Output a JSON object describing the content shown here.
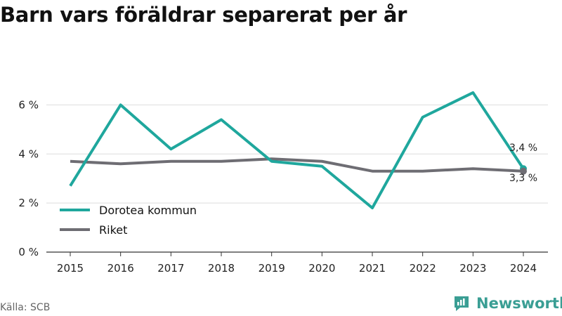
{
  "title": "Barn vars föräldrar separerat per år",
  "source": "Källa: SCB",
  "brand": {
    "name": "Newsworthy",
    "icon": "newsworthy-logo-icon"
  },
  "colors": {
    "teal": "#1fa79d",
    "gray": "#6e6d73",
    "grid": "#dddddd",
    "axis": "#333333"
  },
  "chart_data": {
    "type": "line",
    "title": "Barn vars föräldrar separerat per år",
    "xlabel": "",
    "ylabel": "",
    "x": [
      "2015",
      "2016",
      "2017",
      "2018",
      "2019",
      "2020",
      "2021",
      "2022",
      "2023",
      "2024"
    ],
    "ylim": [
      0,
      7.5
    ],
    "yticks": [
      0,
      2,
      4,
      6
    ],
    "ytick_labels": [
      "0 %",
      "2 %",
      "4 %",
      "6 %"
    ],
    "grid": true,
    "legend": "bottom-left",
    "series": [
      {
        "name": "Dorotea kommun",
        "color": "#1fa79d",
        "values": [
          2.7,
          6.0,
          4.2,
          5.4,
          3.7,
          3.5,
          1.8,
          5.5,
          6.5,
          3.4
        ],
        "end_label": "3,4 %"
      },
      {
        "name": "Riket",
        "color": "#6e6d73",
        "values": [
          3.7,
          3.6,
          3.7,
          3.7,
          3.8,
          3.7,
          3.3,
          3.3,
          3.4,
          3.3
        ],
        "end_label": "3,3 %"
      }
    ]
  }
}
